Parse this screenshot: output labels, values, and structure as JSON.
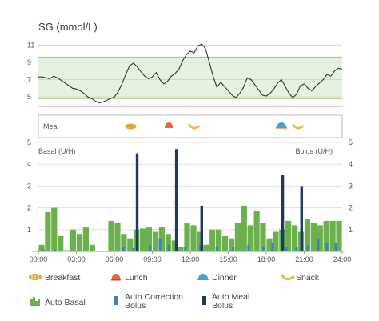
{
  "chart_data": [
    {
      "type": "line",
      "title": "SG (mmol/L)",
      "y_ticks": [
        "11",
        "9",
        "7",
        "5"
      ],
      "ylim": [
        3.8,
        11.4
      ],
      "target_range": [
        4.8,
        9.6
      ],
      "low_limit": 3.9,
      "x_range_hours": [
        0,
        24
      ],
      "grid": true,
      "series": [
        {
          "x": [
            0,
            0.3,
            0.6,
            0.9,
            1.2,
            1.5,
            1.8,
            2.1,
            2.4,
            2.7,
            3.0,
            3.3,
            3.6,
            3.9,
            4.2,
            4.5,
            4.8,
            5.1,
            5.4,
            5.7,
            6.0,
            6.3,
            6.6,
            6.9,
            7.2,
            7.5,
            7.8,
            8.1,
            8.4,
            8.7,
            9.0,
            9.3,
            9.6,
            9.9,
            10.2,
            10.5,
            10.8,
            11.1,
            11.4,
            11.7,
            12.0,
            12.3,
            12.6,
            12.9,
            13.2,
            13.5,
            13.8,
            14.1,
            14.4,
            14.7,
            15.0,
            15.3,
            15.6,
            15.9,
            16.2,
            16.5,
            16.8,
            17.1,
            17.4,
            17.7,
            18.0,
            18.3,
            18.6,
            18.9,
            19.2,
            19.5,
            19.8,
            20.1,
            20.4,
            20.7,
            21.0,
            21.3,
            21.6,
            21.9,
            22.2,
            22.5,
            22.8,
            23.1,
            23.4,
            23.7,
            24.0
          ],
          "values": [
            7.3,
            7.3,
            7.2,
            7.1,
            7.4,
            7.2,
            6.9,
            6.6,
            6.3,
            6.0,
            5.9,
            5.7,
            5.4,
            5.0,
            4.8,
            4.5,
            4.3,
            4.4,
            4.6,
            4.8,
            5.0,
            5.6,
            6.5,
            7.6,
            8.6,
            8.9,
            8.5,
            7.9,
            7.4,
            7.1,
            7.3,
            7.8,
            7.0,
            6.5,
            6.8,
            7.4,
            7.7,
            8.2,
            9.2,
            9.9,
            10.3,
            10.1,
            10.9,
            11.1,
            10.6,
            9.0,
            7.4,
            6.1,
            6.7,
            6.2,
            5.7,
            5.2,
            4.9,
            5.4,
            6.1,
            7.2,
            7.0,
            6.4,
            5.8,
            5.2,
            5.1,
            5.4,
            5.9,
            6.6,
            7.0,
            6.2,
            5.4,
            4.9,
            5.3,
            6.3,
            6.5,
            6.0,
            5.7,
            6.2,
            6.6,
            7.0,
            7.6,
            7.4,
            8.0,
            8.3,
            8.2
          ]
        }
      ]
    },
    {
      "type": "bar",
      "y_ticks": [
        "5",
        "4",
        "3",
        "2",
        "1"
      ],
      "ylim": [
        0,
        5
      ],
      "ylabel_left": "Basal (U/H)",
      "ylabel_right": "Bolus (U/H)",
      "x_ticks": [
        "00:00",
        "03:00",
        "06:00",
        "09:00",
        "12:00",
        "15:00",
        "18:00",
        "21:00",
        "24:00"
      ],
      "x_range_hours": [
        0,
        24
      ],
      "series": [
        {
          "name": "Auto Basal",
          "x": [
            0.25,
            0.75,
            1.25,
            1.75,
            2.25,
            2.75,
            3.25,
            3.75,
            4.25,
            4.75,
            5.25,
            5.75,
            6.25,
            6.75,
            7.25,
            7.75,
            8.25,
            8.75,
            9.25,
            9.75,
            10.25,
            10.75,
            11.25,
            11.75,
            12.25,
            12.75,
            13.25,
            13.75,
            14.25,
            14.75,
            15.25,
            15.75,
            16.25,
            16.75,
            17.25,
            17.75,
            18.25,
            18.75,
            19.25,
            19.75,
            20.25,
            20.75,
            21.25,
            21.75,
            22.25,
            22.75,
            23.25,
            23.75
          ],
          "values": [
            0.3,
            1.8,
            2.0,
            0.7,
            0.05,
            1.0,
            0.8,
            1.1,
            0.3,
            0.0,
            0.0,
            1.4,
            1.3,
            0.8,
            0.6,
            1.0,
            1.05,
            1.1,
            0.9,
            1.1,
            0.8,
            0.5,
            0.2,
            1.3,
            1.2,
            0.9,
            0.3,
            1.0,
            1.0,
            0.7,
            0.6,
            1.3,
            2.1,
            1.2,
            1.85,
            1.3,
            0.6,
            0.9,
            1.0,
            1.4,
            1.2,
            0.9,
            1.5,
            1.3,
            1.2,
            1.4,
            1.4,
            1.4
          ]
        },
        {
          "name": "Auto Correction Bolus",
          "x": [
            0.4,
            1.3,
            6.7,
            7.5,
            8.8,
            9.6,
            10.3,
            11.6,
            12.8,
            14.1,
            15.4,
            16.6,
            17.8,
            18.5,
            19.6,
            20.4,
            21.3,
            22.1,
            22.8,
            23.5
          ],
          "values": [
            0.1,
            0.1,
            0.2,
            0.15,
            0.3,
            0.6,
            0.3,
            0.2,
            0.3,
            0.2,
            0.2,
            0.3,
            0.2,
            0.4,
            0.2,
            0.2,
            0.3,
            0.6,
            0.4,
            0.4
          ]
        },
        {
          "name": "Auto Meal Bolus",
          "x": [
            7.8,
            10.9,
            12.9,
            19.3,
            20.8
          ],
          "values": [
            4.5,
            4.7,
            2.1,
            3.5,
            3.0
          ]
        }
      ]
    }
  ],
  "meal_row": {
    "label": "Meal",
    "markers": [
      {
        "type": "breakfast",
        "hour": 7.3
      },
      {
        "type": "lunch",
        "hour": 10.3
      },
      {
        "type": "snack",
        "hour": 12.3
      },
      {
        "type": "dinner",
        "hour": 19.2
      },
      {
        "type": "snack",
        "hour": 20.5
      }
    ]
  },
  "legend": {
    "breakfast": "Breakfast",
    "lunch": "Lunch",
    "dinner": "Dinner",
    "snack": "Snack",
    "auto_basal": "Auto Basal",
    "auto_correction_bolus_1": "Auto Correction",
    "auto_correction_bolus_2": "Bolus",
    "auto_meal_bolus_1": "Auto Meal",
    "auto_meal_bolus_2": "Bolus"
  },
  "colors": {
    "sg_line": "#333333",
    "target_band": "#e6f2e0",
    "target_line": "#9ccc65",
    "low_line": "#e35a5a",
    "basal": "#6ab04c",
    "correction_bolus": "#3b7fc4",
    "meal_bolus": "#1f3864",
    "breakfast_icon": "#e0a63a",
    "lunch_icon": "#e06a3a",
    "dinner_icon": "#4aa3c7",
    "snack_icon": "#e8b84a"
  }
}
